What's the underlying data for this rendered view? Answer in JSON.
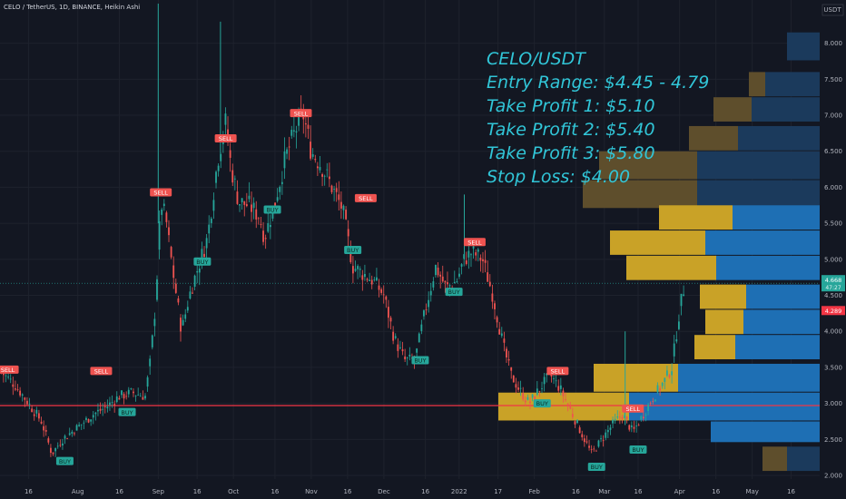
{
  "header": {
    "symbol_line": "CELO / TetherUS, 1D, BINANCE, Heikin Ashi"
  },
  "annotation": {
    "lines": [
      "CELO/USDT",
      "Entry Range: $4.45 - 4.79",
      "Take Profit 1: $5.10",
      "Take Profit 2: $5.40",
      "Take Profit 3: $5.80",
      "Stop Loss: $4.00"
    ]
  },
  "colors": {
    "background": "#131722",
    "up": "#26a69a",
    "down": "#ef5350",
    "support_line": "#f23645",
    "annotation": "#31c6d8",
    "vp_up": "#1e6fb4",
    "vp_down": "#c9a227",
    "vp_up_dim": "#1b3a5c",
    "vp_down_dim": "#5e4e2c",
    "price_up_tag": "#26a69a",
    "price_down_tag": "#f23645"
  },
  "chart_data": {
    "type": "candlestick",
    "style": "Heikin Ashi",
    "currency": "USDT",
    "y_axis": {
      "ticks": [
        2.0,
        2.5,
        3.0,
        3.5,
        4.0,
        4.5,
        5.0,
        5.5,
        6.0,
        6.5,
        7.0,
        7.5,
        8.0
      ],
      "tick_labels": [
        "2.000",
        "2.500",
        "3.000",
        "3.500",
        "4.000",
        "4.500",
        "5.000",
        "5.500",
        "6.000",
        "6.500",
        "7.000",
        "7.500",
        "8.000"
      ],
      "range": [
        1.95,
        8.6
      ]
    },
    "x_axis": {
      "tick_labels": [
        "16",
        "Aug",
        "16",
        "Sep",
        "16",
        "Oct",
        "16",
        "Nov",
        "16",
        "Dec",
        "16",
        "2022",
        "17",
        "Feb",
        "16",
        "Mar",
        "16",
        "Apr",
        "16",
        "May",
        "16"
      ],
      "tick_positions": [
        0.5,
        2.4,
        4.0,
        5.5,
        7.0,
        8.4,
        10.0,
        11.4,
        12.8,
        14.2,
        15.8,
        17.1,
        18.6,
        20.0,
        21.6,
        22.7,
        24.0,
        25.6,
        27.0,
        28.4,
        29.9
      ],
      "range": [
        -0.6,
        31.0
      ]
    },
    "current_price": {
      "label": "4.668",
      "countdown": "47:27",
      "value": 4.668
    },
    "secondary_price": {
      "label": "4.289",
      "value": 4.289
    },
    "support_level": 2.97,
    "price_path": [
      [
        -0.6,
        3.45
      ],
      [
        0.0,
        3.25
      ],
      [
        0.5,
        3.0
      ],
      [
        1.0,
        2.75
      ],
      [
        1.4,
        2.3
      ],
      [
        1.8,
        2.5
      ],
      [
        2.5,
        2.7
      ],
      [
        3.0,
        2.85
      ],
      [
        3.5,
        2.95
      ],
      [
        4.0,
        3.1
      ],
      [
        4.5,
        3.15
      ],
      [
        5.0,
        3.1
      ],
      [
        5.2,
        3.6
      ],
      [
        5.4,
        4.4
      ],
      [
        5.6,
        5.8
      ],
      [
        5.8,
        5.55
      ],
      [
        6.0,
        5.0
      ],
      [
        6.4,
        4.0
      ],
      [
        6.7,
        4.5
      ],
      [
        7.0,
        4.85
      ],
      [
        7.4,
        5.3
      ],
      [
        7.8,
        6.4
      ],
      [
        8.1,
        6.9
      ],
      [
        8.3,
        6.3
      ],
      [
        8.6,
        5.8
      ],
      [
        9.0,
        5.75
      ],
      [
        9.4,
        5.6
      ],
      [
        9.6,
        5.3
      ],
      [
        10.0,
        5.8
      ],
      [
        10.4,
        6.4
      ],
      [
        10.8,
        6.8
      ],
      [
        11.1,
        7.0
      ],
      [
        11.4,
        6.5
      ],
      [
        11.8,
        6.3
      ],
      [
        12.2,
        6.0
      ],
      [
        12.6,
        5.7
      ],
      [
        13.0,
        4.9
      ],
      [
        13.4,
        4.8
      ],
      [
        13.8,
        4.7
      ],
      [
        14.2,
        4.5
      ],
      [
        14.6,
        3.9
      ],
      [
        15.0,
        3.6
      ],
      [
        15.4,
        3.6
      ],
      [
        15.8,
        4.3
      ],
      [
        16.2,
        4.9
      ],
      [
        16.6,
        4.6
      ],
      [
        17.0,
        4.7
      ],
      [
        17.3,
        5.0
      ],
      [
        17.6,
        5.1
      ],
      [
        18.0,
        5.0
      ],
      [
        18.4,
        4.5
      ],
      [
        18.8,
        3.8
      ],
      [
        19.1,
        3.4
      ],
      [
        19.4,
        3.2
      ],
      [
        19.8,
        3.0
      ],
      [
        20.2,
        3.2
      ],
      [
        20.6,
        3.4
      ],
      [
        21.0,
        3.2
      ],
      [
        21.4,
        2.9
      ],
      [
        21.8,
        2.6
      ],
      [
        22.2,
        2.3
      ],
      [
        22.6,
        2.5
      ],
      [
        23.0,
        2.7
      ],
      [
        23.4,
        2.85
      ],
      [
        23.8,
        2.6
      ],
      [
        24.2,
        2.85
      ],
      [
        24.6,
        3.1
      ],
      [
        25.0,
        3.3
      ],
      [
        25.3,
        3.5
      ],
      [
        25.6,
        4.3
      ],
      [
        25.8,
        4.67
      ]
    ],
    "signals": [
      {
        "label": "SELL",
        "x": -0.3,
        "y": 3.47,
        "type": "sell"
      },
      {
        "label": "BUY",
        "x": 1.9,
        "y": 2.2,
        "type": "buy"
      },
      {
        "label": "SELL",
        "x": 3.3,
        "y": 3.45,
        "type": "sell"
      },
      {
        "label": "BUY",
        "x": 4.3,
        "y": 2.88,
        "type": "buy"
      },
      {
        "label": "SELL",
        "x": 5.6,
        "y": 5.93,
        "type": "sell"
      },
      {
        "label": "BUY",
        "x": 7.2,
        "y": 4.97,
        "type": "buy"
      },
      {
        "label": "SELL",
        "x": 8.1,
        "y": 6.68,
        "type": "sell"
      },
      {
        "label": "BUY",
        "x": 9.9,
        "y": 5.69,
        "type": "buy"
      },
      {
        "label": "SELL",
        "x": 11.0,
        "y": 7.03,
        "type": "sell"
      },
      {
        "label": "SELL",
        "x": 13.5,
        "y": 5.85,
        "type": "sell"
      },
      {
        "label": "BUY",
        "x": 13.0,
        "y": 5.13,
        "type": "buy"
      },
      {
        "label": "BUY",
        "x": 15.6,
        "y": 3.6,
        "type": "buy"
      },
      {
        "label": "BUY",
        "x": 16.9,
        "y": 4.55,
        "type": "buy"
      },
      {
        "label": "SELL",
        "x": 17.7,
        "y": 5.24,
        "type": "sell"
      },
      {
        "label": "SELL",
        "x": 20.9,
        "y": 3.45,
        "type": "sell"
      },
      {
        "label": "BUY",
        "x": 20.3,
        "y": 3.0,
        "type": "buy"
      },
      {
        "label": "SELL",
        "x": 23.8,
        "y": 2.93,
        "type": "sell"
      },
      {
        "label": "BUY",
        "x": 22.4,
        "y": 2.12,
        "type": "buy"
      },
      {
        "label": "BUY",
        "x": 24.0,
        "y": 2.36,
        "type": "buy"
      }
    ],
    "volume_profile": [
      {
        "low": 7.75,
        "high": 8.15,
        "up": 0.12,
        "down": 0.0,
        "dim": true
      },
      {
        "low": 7.25,
        "high": 7.6,
        "up": 0.2,
        "down": 0.06,
        "dim": true
      },
      {
        "low": 6.9,
        "high": 7.25,
        "up": 0.25,
        "down": 0.14,
        "dim": true
      },
      {
        "low": 6.5,
        "high": 6.85,
        "up": 0.3,
        "down": 0.18,
        "dim": true
      },
      {
        "low": 6.1,
        "high": 6.5,
        "up": 0.45,
        "down": 0.36,
        "dim": true
      },
      {
        "low": 5.7,
        "high": 6.1,
        "up": 0.45,
        "down": 0.42,
        "dim": true
      },
      {
        "low": 5.4,
        "high": 5.75,
        "up": 0.32,
        "down": 0.27,
        "dim": false
      },
      {
        "low": 5.05,
        "high": 5.4,
        "up": 0.42,
        "down": 0.35,
        "dim": false
      },
      {
        "low": 4.7,
        "high": 5.05,
        "up": 0.38,
        "down": 0.33,
        "dim": false
      },
      {
        "low": 4.3,
        "high": 4.65,
        "up": 0.27,
        "down": 0.17,
        "dim": false
      },
      {
        "low": 3.95,
        "high": 4.3,
        "up": 0.28,
        "down": 0.14,
        "dim": false
      },
      {
        "low": 3.6,
        "high": 3.95,
        "up": 0.31,
        "down": 0.15,
        "dim": false
      },
      {
        "low": 3.15,
        "high": 3.55,
        "up": 0.52,
        "down": 0.31,
        "dim": false
      },
      {
        "low": 2.75,
        "high": 3.15,
        "up": 0.7,
        "down": 0.48,
        "dim": false
      },
      {
        "low": 2.45,
        "high": 2.75,
        "up": 0.4,
        "down": 0.0,
        "dim": false
      },
      {
        "low": 2.05,
        "high": 2.4,
        "up": 0.12,
        "down": 0.09,
        "dim": true
      }
    ]
  }
}
